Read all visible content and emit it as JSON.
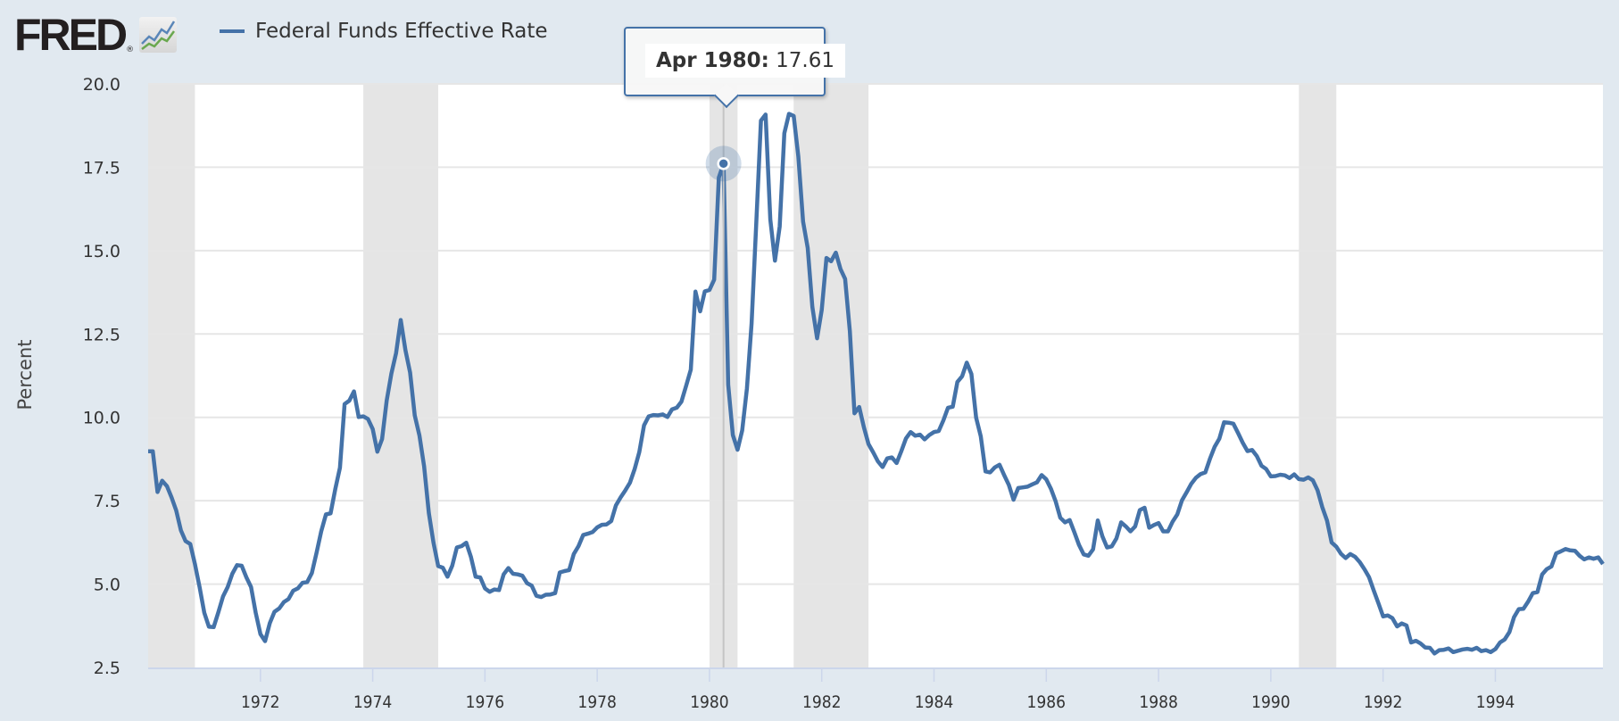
{
  "header": {
    "logo_text": "FRED",
    "logo_reg": "®",
    "legend_label": "Federal Funds Effective Rate"
  },
  "tooltip": {
    "date": "Apr 1980:",
    "value": "17.61"
  },
  "colors": {
    "series": "#4472a8",
    "recession": "#e5e5e5",
    "background": "#e1e9f0",
    "plot_bg": "#ffffff",
    "grid": "#e6e6e6"
  },
  "chart_data": {
    "type": "line",
    "title": "Federal Funds Effective Rate",
    "xlabel": "",
    "ylabel": "Percent",
    "ylim": [
      2.5,
      20.0
    ],
    "xlim": [
      "1970-01",
      "1995-12"
    ],
    "grid": true,
    "legend_position": "top-left",
    "y_ticks": [
      "2.5",
      "5.0",
      "7.5",
      "10.0",
      "12.5",
      "15.0",
      "17.5",
      "20.0"
    ],
    "x_ticks": [
      "1972",
      "1974",
      "1976",
      "1978",
      "1980",
      "1982",
      "1984",
      "1986",
      "1988",
      "1990",
      "1992",
      "1994"
    ],
    "recessions": [
      {
        "start": "1969-12",
        "end": "1970-11"
      },
      {
        "start": "1973-11",
        "end": "1975-03"
      },
      {
        "start": "1980-01",
        "end": "1980-07"
      },
      {
        "start": "1981-07",
        "end": "1982-11"
      },
      {
        "start": "1990-07",
        "end": "1991-03"
      }
    ],
    "highlight": {
      "date": "1980-04",
      "value": 17.61
    },
    "series": [
      {
        "name": "Federal Funds Effective Rate",
        "start": "1970-01",
        "frequency": "monthly",
        "values": [
          8.98,
          8.98,
          7.76,
          8.1,
          7.94,
          7.6,
          7.21,
          6.61,
          6.29,
          6.2,
          5.6,
          4.9,
          4.14,
          3.72,
          3.71,
          4.15,
          4.63,
          4.91,
          5.31,
          5.57,
          5.55,
          5.2,
          4.91,
          4.14,
          3.5,
          3.29,
          3.83,
          4.17,
          4.27,
          4.46,
          4.55,
          4.8,
          4.87,
          5.04,
          5.06,
          5.33,
          5.94,
          6.58,
          7.09,
          7.12,
          7.84,
          8.49,
          10.4,
          10.5,
          10.78,
          10.01,
          10.03,
          9.95,
          9.65,
          8.97,
          9.35,
          10.51,
          11.31,
          11.93,
          12.92,
          12.01,
          11.34,
          10.06,
          9.45,
          8.53,
          7.13,
          6.24,
          5.54,
          5.49,
          5.22,
          5.55,
          6.1,
          6.14,
          6.24,
          5.82,
          5.22,
          5.2,
          4.87,
          4.77,
          4.84,
          4.82,
          5.29,
          5.48,
          5.31,
          5.29,
          5.25,
          5.03,
          4.95,
          4.65,
          4.61,
          4.68,
          4.69,
          4.73,
          5.35,
          5.39,
          5.42,
          5.9,
          6.14,
          6.47,
          6.51,
          6.56,
          6.7,
          6.78,
          6.79,
          6.89,
          7.36,
          7.6,
          7.81,
          8.04,
          8.45,
          8.96,
          9.76,
          10.03,
          10.07,
          10.06,
          10.09,
          10.01,
          10.24,
          10.29,
          10.47,
          10.94,
          11.43,
          13.77,
          13.18,
          13.78,
          13.82,
          14.13,
          17.19,
          17.61,
          10.98,
          9.47,
          9.03,
          9.61,
          10.87,
          12.81,
          15.85,
          18.9,
          19.08,
          15.93,
          14.7,
          15.72,
          18.52,
          19.1,
          19.04,
          17.82,
          15.87,
          15.08,
          13.31,
          12.37,
          13.22,
          14.78,
          14.68,
          14.94,
          14.45,
          14.15,
          12.59,
          10.12,
          10.31,
          9.71,
          9.2,
          8.95,
          8.68,
          8.51,
          8.77,
          8.8,
          8.63,
          8.98,
          9.37,
          9.56,
          9.45,
          9.48,
          9.34,
          9.47,
          9.56,
          9.59,
          9.91,
          10.29,
          10.32,
          11.06,
          11.23,
          11.64,
          11.3,
          9.99,
          9.43,
          8.38,
          8.35,
          8.5,
          8.58,
          8.27,
          7.97,
          7.53,
          7.88,
          7.9,
          7.92,
          7.99,
          8.05,
          8.27,
          8.14,
          7.86,
          7.48,
          6.99,
          6.85,
          6.92,
          6.56,
          6.17,
          5.89,
          5.85,
          6.04,
          6.91,
          6.43,
          6.1,
          6.13,
          6.37,
          6.85,
          6.73,
          6.58,
          6.73,
          7.22,
          7.29,
          6.69,
          6.77,
          6.83,
          6.58,
          6.58,
          6.87,
          7.09,
          7.51,
          7.75,
          8.01,
          8.19,
          8.3,
          8.35,
          8.76,
          9.12,
          9.36,
          9.85,
          9.84,
          9.81,
          9.53,
          9.24,
          8.99,
          9.02,
          8.84,
          8.55,
          8.45,
          8.23,
          8.24,
          8.28,
          8.26,
          8.18,
          8.29,
          8.15,
          8.13,
          8.2,
          8.11,
          7.81,
          7.31,
          6.91,
          6.25,
          6.12,
          5.91,
          5.78,
          5.9,
          5.82,
          5.66,
          5.45,
          5.21,
          4.81,
          4.43,
          4.03,
          4.06,
          3.98,
          3.73,
          3.82,
          3.76,
          3.25,
          3.3,
          3.22,
          3.1,
          3.09,
          2.92,
          3.02,
          3.03,
          3.07,
          2.96,
          3.0,
          3.04,
          3.06,
          3.03,
          3.09,
          2.99,
          3.02,
          2.96,
          3.05,
          3.25,
          3.34,
          3.56,
          4.01,
          4.25,
          4.26,
          4.47,
          4.73,
          4.76,
          5.29,
          5.45,
          5.53,
          5.92,
          5.98,
          6.05,
          6.01,
          6.0,
          5.85,
          5.74,
          5.8,
          5.76,
          5.8,
          5.6
        ]
      }
    ]
  }
}
